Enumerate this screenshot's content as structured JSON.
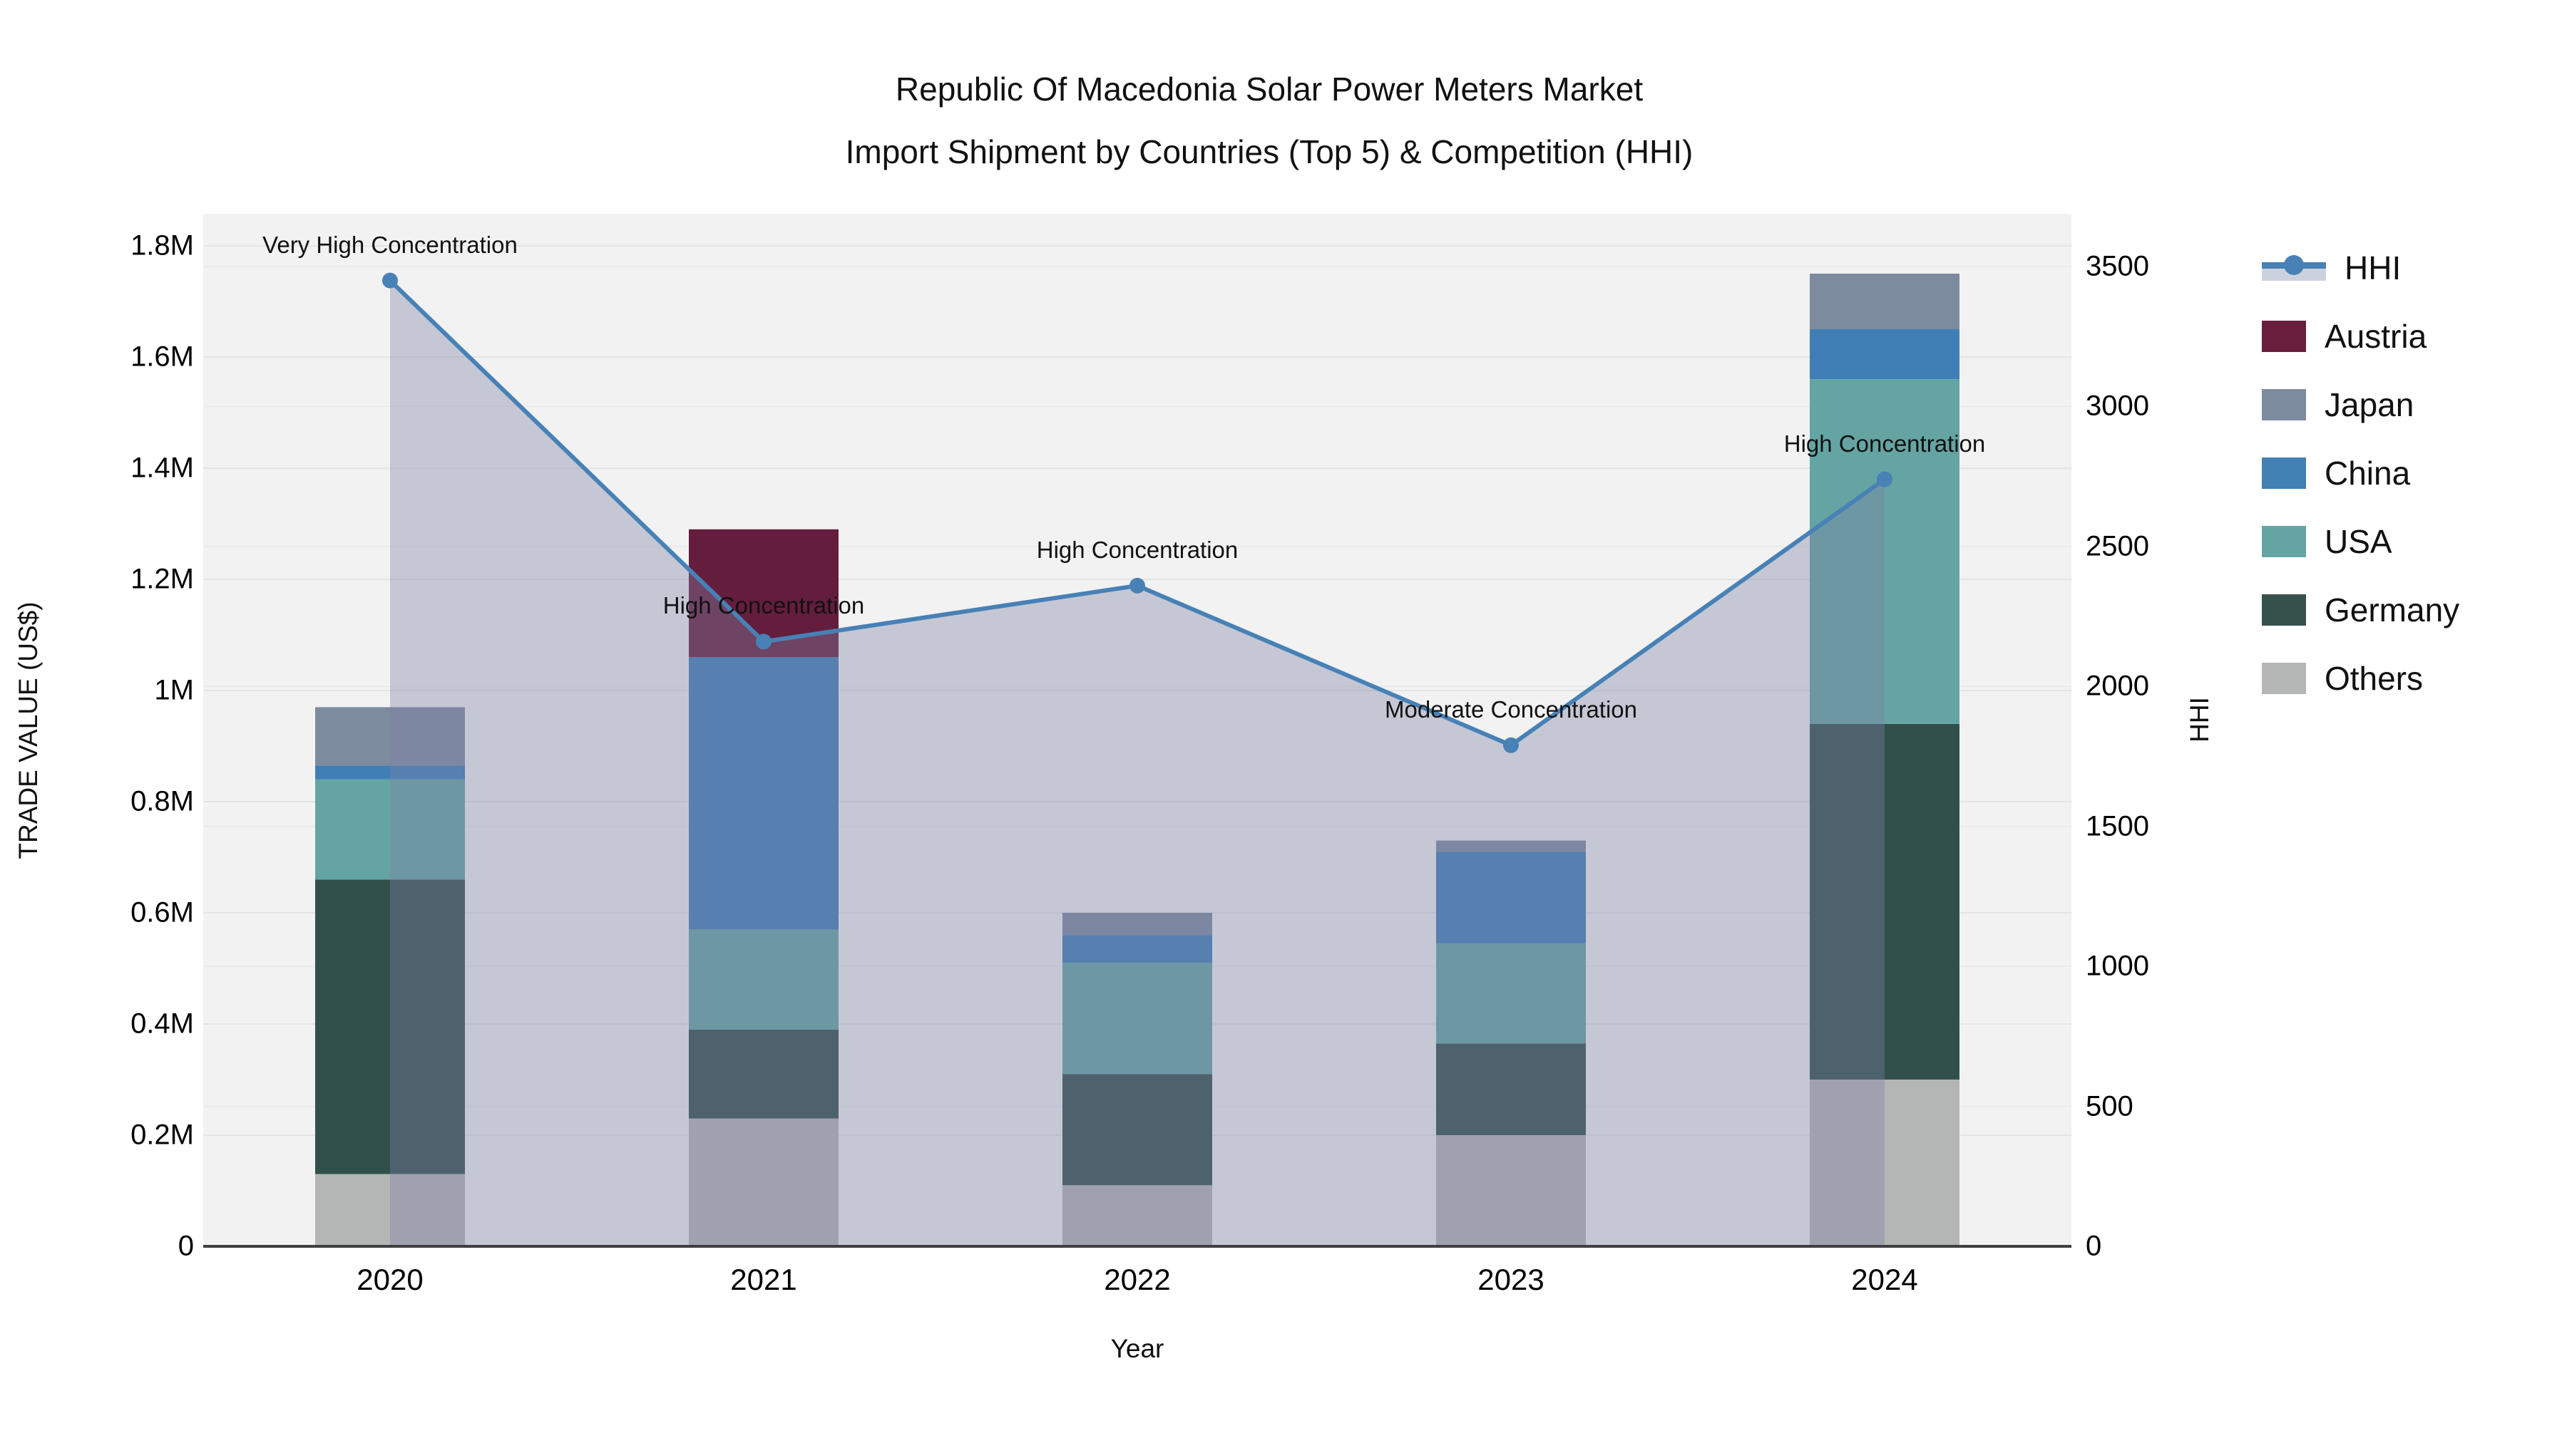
{
  "title": {
    "line1": "Republic Of Macedonia Solar Power Meters Market",
    "line2": "Import Shipment by Countries (Top 5) & Competition (HHI)"
  },
  "axes": {
    "y_left": {
      "title": "TRADE VALUE (US$)",
      "tick_labels": [
        "0",
        "0.2M",
        "0.4M",
        "0.6M",
        "0.8M",
        "1M",
        "1.2M",
        "1.4M",
        "1.6M",
        "1.8M"
      ],
      "tick_values": [
        0,
        0.2,
        0.4,
        0.6,
        0.8,
        1.0,
        1.2,
        1.4,
        1.6,
        1.8
      ]
    },
    "y_right": {
      "title": "HHI",
      "tick_labels": [
        "0",
        "500",
        "1000",
        "1500",
        "2000",
        "2500",
        "3000",
        "3500"
      ],
      "tick_values": [
        0,
        500,
        1000,
        1500,
        2000,
        2500,
        3000,
        3500
      ]
    },
    "x": {
      "title": "Year",
      "tick_labels": [
        "2020",
        "2021",
        "2022",
        "2023",
        "2024"
      ]
    }
  },
  "legend": {
    "items": [
      {
        "label": "HHI",
        "type": "line",
        "color": "#4781b6"
      },
      {
        "label": "Austria",
        "type": "swatch",
        "color": "#6a1e3e"
      },
      {
        "label": "Japan",
        "type": "swatch",
        "color": "#7d8b9e"
      },
      {
        "label": "China",
        "type": "swatch",
        "color": "#4281b4"
      },
      {
        "label": "USA",
        "type": "swatch",
        "color": "#64a5a3"
      },
      {
        "label": "Germany",
        "type": "swatch",
        "color": "#36514c"
      },
      {
        "label": "Others",
        "type": "swatch",
        "color": "#b3b6b4"
      }
    ]
  },
  "chart_data": {
    "type": "bar+line",
    "title": "Republic Of Macedonia Solar Power Meters Market — Import Shipment by Countries (Top 5) & Competition (HHI)",
    "categories": [
      "2020",
      "2021",
      "2022",
      "2023",
      "2024"
    ],
    "bar_unit": "M US$",
    "stack_order_bottom_to_top": [
      "Others",
      "Germany",
      "USA",
      "China",
      "Japan",
      "Austria"
    ],
    "series": [
      {
        "name": "Others",
        "color": "#b3b6b4",
        "values": [
          0.13,
          0.23,
          0.11,
          0.2,
          0.3
        ]
      },
      {
        "name": "Germany",
        "color": "#31504b",
        "values": [
          0.53,
          0.16,
          0.2,
          0.165,
          0.64
        ]
      },
      {
        "name": "USA",
        "color": "#64a5a3",
        "values": [
          0.18,
          0.18,
          0.2,
          0.18,
          0.62
        ]
      },
      {
        "name": "China",
        "color": "#3f7fb5",
        "values": [
          0.025,
          0.49,
          0.05,
          0.165,
          0.09
        ]
      },
      {
        "name": "Japan",
        "color": "#7c8b9e",
        "values": [
          0.105,
          0.0,
          0.04,
          0.02,
          0.1
        ]
      },
      {
        "name": "Austria",
        "color": "#641d3d",
        "values": [
          0.0,
          0.23,
          0.0,
          0.0,
          0.0
        ]
      }
    ],
    "bar_totals": [
      0.97,
      1.29,
      0.6,
      0.73,
      1.75
    ],
    "line_series": {
      "name": "HHI",
      "color": "#4781b6",
      "fill_color": "rgba(127,130,165,0.38)",
      "values": [
        3450,
        2160,
        2360,
        1790,
        2740
      ]
    },
    "annotations": [
      {
        "year": "2020",
        "text": "Very High Concentration"
      },
      {
        "year": "2021",
        "text": "High Concentration"
      },
      {
        "year": "2022",
        "text": "High Concentration"
      },
      {
        "year": "2023",
        "text": "Moderate Concentration"
      },
      {
        "year": "2024",
        "text": "High Concentration"
      }
    ],
    "ylim_left_M": [
      0,
      1.86
    ],
    "ylim_right_HHI": [
      0,
      3500
    ],
    "grid": true,
    "legend_position": "right",
    "plot_bg": "#f2f2f2",
    "gridline_color_left": "#e2e4e6",
    "gridline_color_right": "#eaebed",
    "axisline_color": "#3f3f3f"
  }
}
